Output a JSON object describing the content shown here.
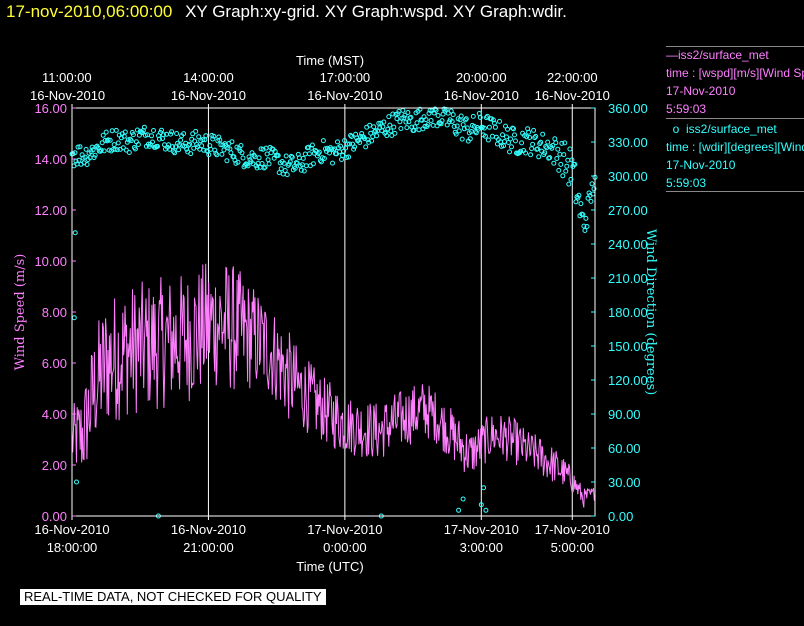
{
  "header": {
    "datetime": "17-nov-2010,06:00:00",
    "titles": "XY Graph:xy-grid.  XY Graph:wspd.  XY Graph:wdir."
  },
  "colors": {
    "wspd": "#ff7fff",
    "wdir": "#33ffff",
    "grid": "#ffffff",
    "header_date": "#ffff33"
  },
  "legend": {
    "wspd": {
      "name": "iss2/surface_met",
      "desc": "time : [wspd][m/s][Wind Speed]",
      "date": "17-Nov-2010",
      "time": "5:59:03"
    },
    "wdir": {
      "name": "iss2/surface_met",
      "desc": "time : [wdir][degrees][Wind Direction]",
      "date": "17-Nov-2010",
      "time": "5:59:03"
    }
  },
  "notice": "REAL-TIME DATA, NOT CHECKED FOR QUALITY",
  "chart_data": {
    "type": "line",
    "x_range_hours_utc": [
      0,
      11.5
    ],
    "top_axis": {
      "label": "Time (MST)",
      "ticks": [
        {
          "pos_utc_hour": 0,
          "time": "11:00:00",
          "date": "16-Nov-2010"
        },
        {
          "pos_utc_hour": 3,
          "time": "14:00:00",
          "date": "16-Nov-2010"
        },
        {
          "pos_utc_hour": 6,
          "time": "17:00:00",
          "date": "16-Nov-2010"
        },
        {
          "pos_utc_hour": 9,
          "time": "20:00:00",
          "date": "16-Nov-2010"
        },
        {
          "pos_utc_hour": 11,
          "time": "22:00:00",
          "date": "16-Nov-2010"
        }
      ]
    },
    "bottom_axis": {
      "label": "Time (UTC)",
      "ticks": [
        {
          "pos_utc_hour": 0,
          "date": "16-Nov-2010",
          "time": "18:00:00"
        },
        {
          "pos_utc_hour": 3,
          "date": "16-Nov-2010",
          "time": "21:00:00"
        },
        {
          "pos_utc_hour": 6,
          "date": "17-Nov-2010",
          "time": "0:00:00"
        },
        {
          "pos_utc_hour": 9,
          "date": "17-Nov-2010",
          "time": "3:00:00"
        },
        {
          "pos_utc_hour": 11,
          "date": "17-Nov-2010",
          "time": "5:00:00"
        }
      ]
    },
    "vgrid_hours": [
      3,
      6,
      9,
      11
    ],
    "left_axis": {
      "label": "Wind Speed (m/s)",
      "ylim": [
        0,
        16
      ],
      "ticks": [
        "0.00",
        "2.00",
        "4.00",
        "6.00",
        "8.00",
        "10.00",
        "12.00",
        "14.00",
        "16.00"
      ]
    },
    "right_axis": {
      "label": "Wind Direction (degrees)",
      "ylim": [
        0,
        360
      ],
      "ticks": [
        "0.00",
        "30.00",
        "60.00",
        "90.00",
        "120.00",
        "150.00",
        "180.00",
        "210.00",
        "240.00",
        "270.00",
        "300.00",
        "330.00",
        "360.00"
      ]
    },
    "series": [
      {
        "name": "iss2/surface_met",
        "variable": "wspd",
        "style": "line",
        "x_hours_utc": [
          0,
          0.25,
          0.5,
          0.75,
          1,
          1.25,
          1.5,
          1.75,
          2,
          2.25,
          2.5,
          2.75,
          3,
          3.25,
          3.5,
          3.75,
          4,
          4.25,
          4.5,
          4.75,
          5,
          5.25,
          5.5,
          5.75,
          6,
          6.25,
          6.5,
          6.75,
          7,
          7.25,
          7.5,
          7.75,
          8,
          8.25,
          8.5,
          8.75,
          9,
          9.25,
          9.5,
          9.75,
          10,
          10.25,
          10.5,
          10.75,
          11,
          11.25,
          11.5
        ],
        "mean": [
          3.0,
          3.2,
          5.0,
          6.0,
          6.3,
          6.5,
          6.6,
          6.7,
          6.8,
          6.9,
          7.0,
          7.2,
          7.5,
          7.6,
          7.4,
          7.2,
          7.0,
          6.7,
          6.2,
          5.5,
          5.0,
          4.6,
          4.2,
          3.9,
          3.6,
          3.5,
          3.4,
          3.3,
          3.6,
          3.8,
          4.0,
          4.2,
          3.9,
          3.4,
          2.9,
          2.4,
          2.8,
          3.2,
          3.1,
          2.9,
          2.6,
          2.4,
          2.1,
          1.8,
          1.4,
          0.7,
          0.9
        ],
        "amplitude": [
          1.0,
          1.4,
          1.8,
          2.0,
          2.0,
          2.0,
          2.0,
          2.0,
          2.0,
          2.0,
          2.0,
          2.0,
          2.0,
          2.0,
          2.0,
          1.8,
          1.6,
          1.5,
          1.4,
          1.4,
          1.2,
          1.1,
          1.0,
          1.0,
          0.9,
          0.9,
          0.9,
          0.9,
          0.9,
          0.9,
          0.9,
          0.9,
          0.8,
          0.8,
          0.8,
          0.7,
          0.7,
          0.7,
          0.7,
          0.7,
          0.6,
          0.6,
          0.6,
          0.5,
          0.4,
          0.3,
          0.2
        ]
      },
      {
        "name": "iss2/surface_met",
        "variable": "wdir",
        "style": "scatter",
        "x_hours_utc": [
          0,
          0.25,
          0.5,
          0.75,
          1,
          1.25,
          1.5,
          1.75,
          2,
          2.25,
          2.5,
          2.75,
          3,
          3.25,
          3.5,
          3.75,
          4,
          4.25,
          4.5,
          4.75,
          5,
          5.25,
          5.5,
          5.75,
          6,
          6.25,
          6.5,
          6.75,
          7,
          7.25,
          7.5,
          7.75,
          8,
          8.25,
          8.5,
          8.75,
          9,
          9.25,
          9.5,
          9.75,
          10,
          10.25,
          10.5,
          10.75,
          11,
          11.25,
          11.5
        ],
        "mean": [
          320,
          318,
          323,
          330,
          333,
          330,
          335,
          336,
          333,
          330,
          328,
          330,
          328,
          325,
          322,
          318,
          315,
          317,
          313,
          308,
          310,
          318,
          322,
          320,
          325,
          330,
          335,
          340,
          345,
          350,
          348,
          352,
          355,
          350,
          345,
          340,
          345,
          340,
          335,
          330,
          332,
          328,
          325,
          318,
          305,
          255,
          298
        ],
        "spread": [
          12,
          10,
          10,
          10,
          10,
          10,
          10,
          10,
          10,
          10,
          10,
          10,
          10,
          10,
          10,
          10,
          10,
          10,
          10,
          10,
          10,
          10,
          10,
          10,
          10,
          10,
          10,
          10,
          10,
          10,
          10,
          10,
          12,
          12,
          12,
          12,
          12,
          12,
          12,
          12,
          12,
          12,
          12,
          15,
          20,
          15,
          8
        ],
        "outliers": [
          [
            0.05,
            175
          ],
          [
            0.07,
            250
          ],
          [
            0.1,
            30
          ],
          [
            1.9,
            0
          ],
          [
            6.8,
            0
          ],
          [
            8.5,
            5
          ],
          [
            8.6,
            15
          ],
          [
            9.0,
            10
          ],
          [
            9.05,
            25
          ],
          [
            9.1,
            5
          ]
        ]
      }
    ]
  }
}
